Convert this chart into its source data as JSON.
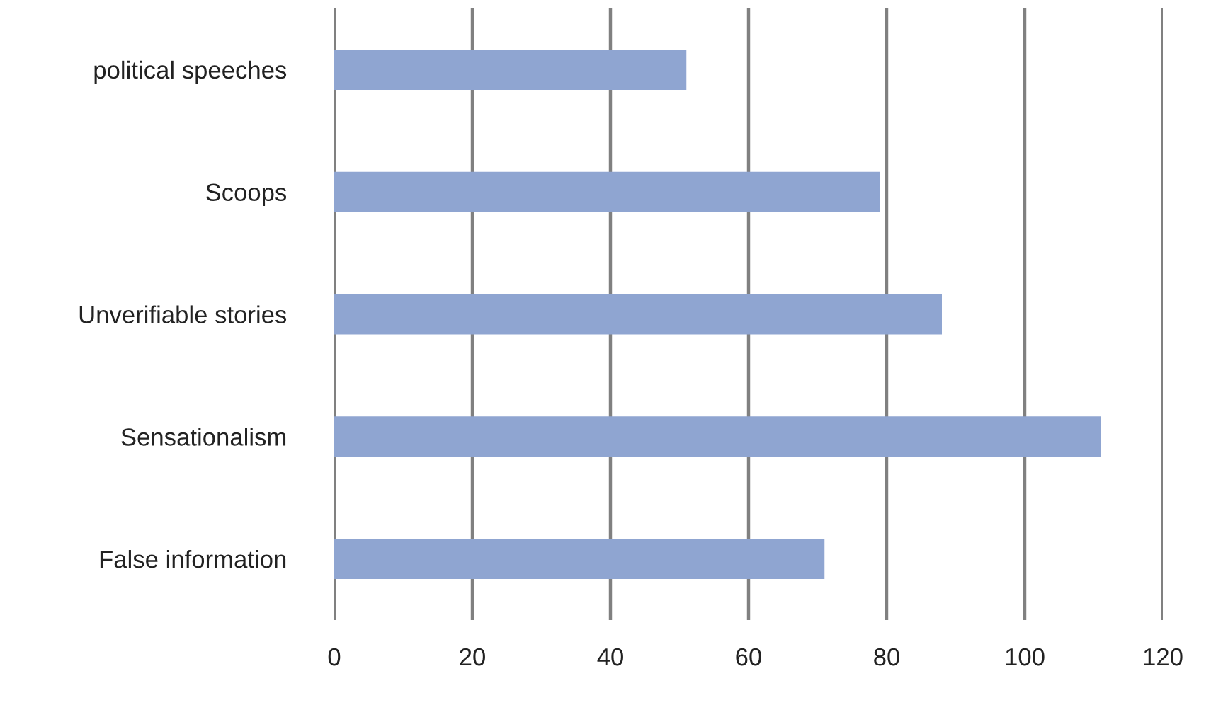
{
  "chart_data": {
    "type": "bar",
    "orientation": "horizontal",
    "categories": [
      "political speeches",
      "Scoops",
      "Unverifiable stories",
      "Sensationalism",
      "False information"
    ],
    "values": [
      51,
      79,
      88,
      111,
      71
    ],
    "color": "#8fa5d1",
    "xlim": [
      0,
      120
    ],
    "xticks": [
      0,
      20,
      40,
      60,
      80,
      100,
      120
    ],
    "grid": "x",
    "legend": false
  }
}
